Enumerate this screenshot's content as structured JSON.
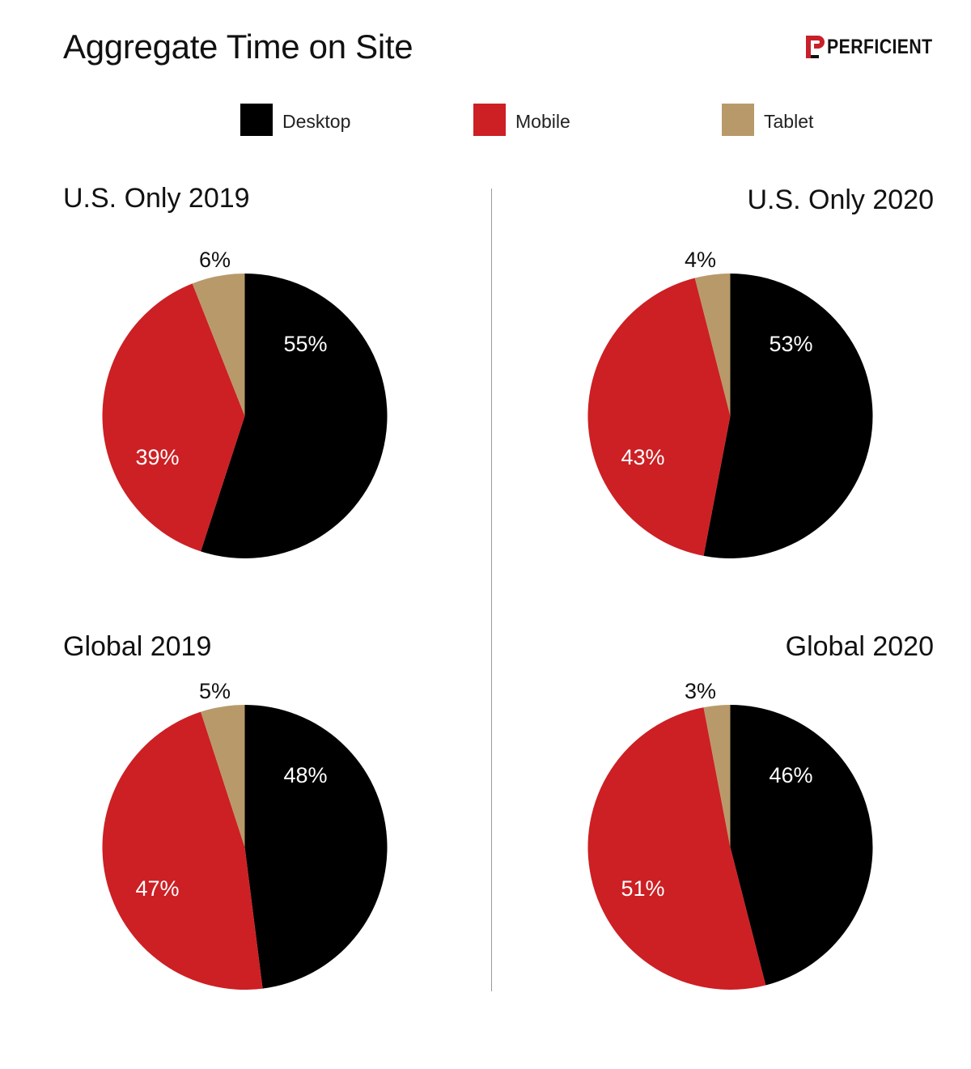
{
  "title": "Aggregate Time on Site",
  "brand": {
    "name": "PERFICIENT",
    "logo_icon": "perficient-logo-icon",
    "accent": "#C8202A"
  },
  "legend": [
    {
      "label": "Desktop",
      "color": "#000000"
    },
    {
      "label": "Mobile",
      "color": "#CC2024"
    },
    {
      "label": "Tablet",
      "color": "#B89A6A"
    }
  ],
  "chart_data": [
    {
      "type": "pie",
      "title": "U.S. Only 2019",
      "slices": [
        {
          "label": "Desktop",
          "value": 55,
          "display": "55%",
          "color": "#000000"
        },
        {
          "label": "Mobile",
          "value": 39,
          "display": "39%",
          "color": "#CC2024"
        },
        {
          "label": "Tablet",
          "value": 6,
          "display": "6%",
          "color": "#B89A6A"
        }
      ]
    },
    {
      "type": "pie",
      "title": "U.S. Only 2020",
      "slices": [
        {
          "label": "Desktop",
          "value": 53,
          "display": "53%",
          "color": "#000000"
        },
        {
          "label": "Mobile",
          "value": 43,
          "display": "43%",
          "color": "#CC2024"
        },
        {
          "label": "Tablet",
          "value": 4,
          "display": "4%",
          "color": "#B89A6A"
        }
      ]
    },
    {
      "type": "pie",
      "title": "Global 2019",
      "slices": [
        {
          "label": "Desktop",
          "value": 48,
          "display": "48%",
          "color": "#000000"
        },
        {
          "label": "Mobile",
          "value": 47,
          "display": "47%",
          "color": "#CC2024"
        },
        {
          "label": "Tablet",
          "value": 5,
          "display": "5%",
          "color": "#B89A6A"
        }
      ]
    },
    {
      "type": "pie",
      "title": "Global 2020",
      "slices": [
        {
          "label": "Desktop",
          "value": 46,
          "display": "46%",
          "color": "#000000"
        },
        {
          "label": "Mobile",
          "value": 51,
          "display": "51%",
          "color": "#CC2024"
        },
        {
          "label": "Tablet",
          "value": 3,
          "display": "3%",
          "color": "#B89A6A"
        }
      ]
    }
  ]
}
